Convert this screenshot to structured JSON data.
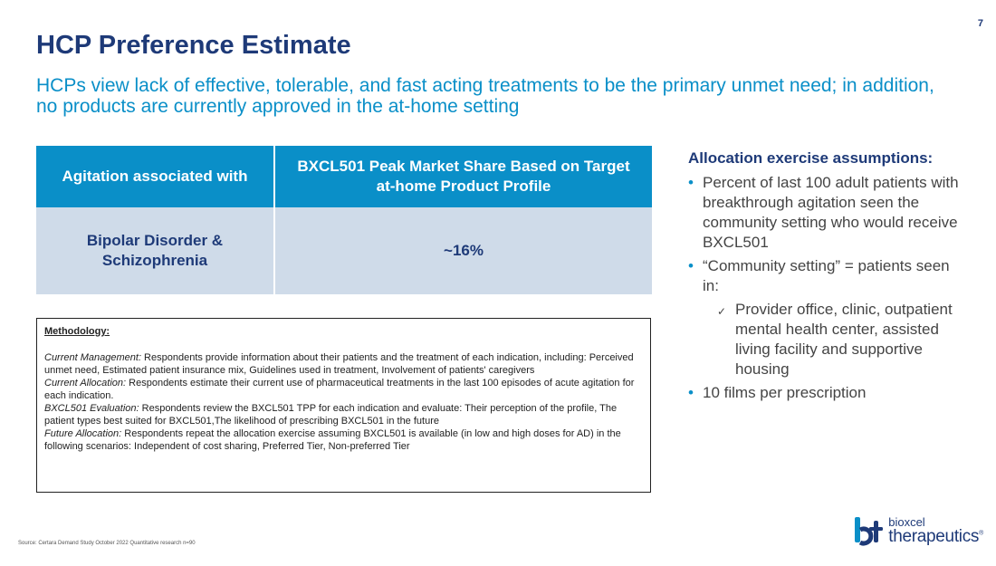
{
  "page_number": "7",
  "title": "HCP Preference Estimate",
  "subtitle": "HCPs view lack of effective, tolerable, and fast acting treatments to be the primary unmet need; in addition, no products are currently approved in the at-home setting",
  "table": {
    "headers": [
      "Agitation associated with",
      "BXCL501 Peak Market Share Based on Target at-home Product Profile"
    ],
    "rows": [
      [
        "Bipolar Disorder & Schizophrenia",
        "~16%"
      ]
    ]
  },
  "methodology": {
    "heading": "Methodology:",
    "entries": [
      {
        "term": "Current Management:",
        "text": " Respondents provide information about their patients and the treatment of each indication, including: Perceived unmet need, Estimated patient insurance mix, Guidelines used in treatment, Involvement of patients' caregivers"
      },
      {
        "term": "Current Allocation:",
        "text": " Respondents estimate their current use of pharmaceutical treatments in the last 100 episodes of acute agitation for each indication."
      },
      {
        "term": "BXCL501 Evaluation:",
        "text": " Respondents review the BXCL501 TPP for each indication and evaluate: Their perception of the profile, The patient types best suited for BXCL501,The likelihood of prescribing BXCL501 in the future"
      },
      {
        "term": "Future Allocation:",
        "text": " Respondents repeat the allocation exercise assuming BXCL501 is available (in low and high doses for AD) in the following scenarios: Independent of cost sharing, Preferred Tier, Non-preferred Tier"
      }
    ]
  },
  "assumptions": {
    "heading": "Allocation exercise assumptions:",
    "bullets": [
      "Percent of last 100 adult patients with breakthrough agitation seen the community setting who would receive BXCL501",
      "“Community setting” = patients seen in:",
      "10 films per prescription"
    ],
    "sub_bullets": [
      "Provider office, clinic, outpatient mental health center, assisted living facility and supportive housing"
    ]
  },
  "source": "Source: Certara Demand Study October 2022 Quantitative research n=90",
  "logo": {
    "small": "bioxcel",
    "big": "therapeutics",
    "mark": "®"
  },
  "colors": {
    "navy": "#1e3a78",
    "accent": "#0a8fc8",
    "cell_bg": "#cfdbe9"
  }
}
